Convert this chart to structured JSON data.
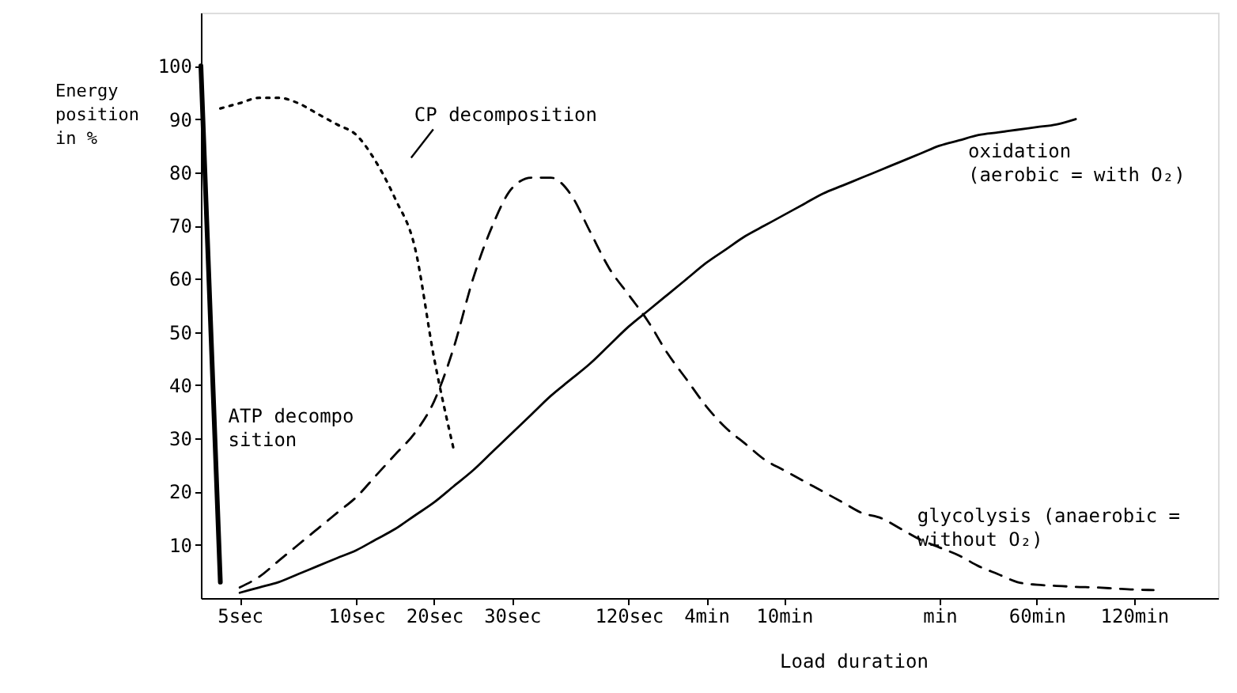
{
  "chart_data": {
    "type": "line",
    "xlabel": "Load duration",
    "ylabel": "Energy position in %",
    "categories": [
      null,
      null,
      "5sec",
      null,
      null,
      null,
      null,
      null,
      "10sec",
      null,
      null,
      null,
      "20sec",
      null,
      null,
      null,
      "30sec",
      null,
      null,
      null,
      null,
      null,
      "120sec",
      null,
      null,
      null,
      "4min",
      null,
      null,
      null,
      "10min",
      null,
      null,
      null,
      null,
      null,
      null,
      null,
      "min",
      null,
      null,
      null,
      null,
      "60min",
      null,
      null,
      null,
      null,
      "120min",
      null,
      null,
      null
    ],
    "ylim": [
      0,
      110
    ],
    "yticks": [
      10,
      20,
      30,
      40,
      50,
      60,
      70,
      80,
      90,
      100
    ],
    "grid": false,
    "marker": "none",
    "series": [
      {
        "name": "ATP decomposition",
        "color": "#000000",
        "line_style": "solid",
        "values": [
          100,
          3,
          null,
          null,
          null,
          null,
          null,
          null,
          null,
          null,
          null,
          null,
          null,
          null,
          null,
          null,
          null,
          null,
          null,
          null,
          null,
          null,
          null,
          null,
          null,
          null,
          null,
          null,
          null,
          null,
          null,
          null,
          null,
          null,
          null,
          null,
          null,
          null,
          null,
          null,
          null,
          null,
          null,
          null,
          null,
          null,
          null,
          null,
          null,
          null,
          null,
          null
        ]
      },
      {
        "name": "CP decomposition",
        "color": "#000000",
        "line_style": "dotted",
        "values": [
          null,
          92,
          93,
          94,
          94,
          93,
          91,
          89,
          87,
          82,
          75,
          66,
          45,
          28,
          null,
          null,
          null,
          null,
          null,
          null,
          null,
          null,
          null,
          null,
          null,
          null,
          null,
          null,
          null,
          null,
          null,
          null,
          null,
          null,
          null,
          null,
          null,
          null,
          null,
          null,
          null,
          null,
          null,
          null,
          null,
          null,
          null,
          null,
          null,
          null,
          null,
          null
        ]
      },
      {
        "name": "glycolysis (anaerobic = without O₂)",
        "color": "#000000",
        "line_style": "dashed",
        "values": [
          null,
          null,
          2,
          4,
          7,
          10,
          13,
          16,
          19,
          23,
          27,
          31,
          37,
          47,
          60,
          70,
          77,
          79,
          79,
          76,
          69,
          62,
          57,
          52,
          46,
          41,
          36,
          32,
          29,
          26,
          24,
          22,
          20,
          18,
          16,
          15,
          13,
          11,
          9.5,
          8,
          6,
          4.5,
          3,
          2.5,
          2.3,
          2.1,
          2,
          1.8,
          1.6,
          1.5,
          null,
          null
        ]
      },
      {
        "name": "oxidation (aerobic = with O₂)",
        "color": "#000000",
        "line_style": "solid",
        "values": [
          null,
          null,
          1,
          2,
          3,
          4.5,
          6,
          7.5,
          9,
          11,
          13,
          15.5,
          18,
          21,
          24,
          27.5,
          31,
          34.5,
          38,
          41,
          44,
          47.5,
          51,
          54,
          57,
          60,
          63,
          65.5,
          68,
          70,
          72,
          74,
          76,
          77.5,
          79,
          80.5,
          82,
          83.5,
          85,
          86,
          87,
          87.5,
          88,
          88.5,
          89,
          90,
          null,
          null,
          null,
          null,
          null,
          null
        ]
      }
    ]
  }
}
